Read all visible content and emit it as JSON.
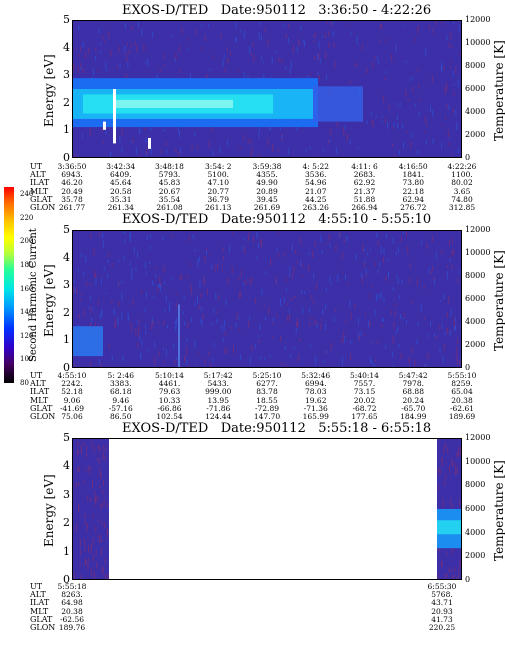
{
  "colorbar": {
    "label": "Second Harmonic Current",
    "ticks": [
      "240",
      "220",
      "200",
      "180",
      "160",
      "140",
      "120",
      "100",
      "80"
    ]
  },
  "panels": [
    {
      "title": "EXOS-D/TED",
      "date": "Date:950112",
      "range": "3:36:50 - 4:22:26",
      "ylabel": "Energy [eV]",
      "rlabel": "Temperature [K]",
      "yticks": [
        "5",
        "4",
        "3",
        "2",
        "1",
        "0"
      ],
      "rticks": [
        "12000",
        "10000",
        "8000",
        "6000",
        "4000",
        "2000",
        "0"
      ],
      "rows": [
        {
          "label": "UT",
          "values": [
            "3:36:50",
            "3:42:34",
            "3:48:18",
            "3:54: 2",
            "3:59:38",
            "4: 5:22",
            "4:11: 6",
            "4:16:50",
            "4:22:26"
          ]
        },
        {
          "label": "ALT",
          "values": [
            "6943.",
            "6409.",
            "5793.",
            "5100.",
            "4355.",
            "3536.",
            "2683.",
            "1841.",
            "1100."
          ]
        },
        {
          "label": "ILAT",
          "values": [
            "46.20",
            "45.64",
            "45.83",
            "47.10",
            "49.90",
            "54.96",
            "62.92",
            "73.80",
            "80.02"
          ]
        },
        {
          "label": "MLT",
          "values": [
            "20.49",
            "20.58",
            "20.67",
            "20.77",
            "20.89",
            "21.07",
            "21.37",
            "22.18",
            "3.65"
          ]
        },
        {
          "label": "GLAT",
          "values": [
            "35.78",
            "35.31",
            "35.54",
            "36.79",
            "39.45",
            "44.25",
            "51.88",
            "62.94",
            "74.80"
          ]
        },
        {
          "label": "GLON",
          "values": [
            "261.77",
            "261.34",
            "261.08",
            "261.13",
            "261.69",
            "263.26",
            "266.94",
            "276.72",
            "312.85"
          ]
        }
      ]
    },
    {
      "title": "EXOS-D/TED",
      "date": "Date:950112",
      "range": "4:55:10 - 5:55:10",
      "ylabel": "Energy [eV]",
      "rlabel": "Temperature [K]",
      "yticks": [
        "5",
        "4",
        "3",
        "2",
        "1",
        "0"
      ],
      "rticks": [
        "12000",
        "10000",
        "8000",
        "6000",
        "4000",
        "2000",
        "0"
      ],
      "rows": [
        {
          "label": "UT",
          "values": [
            "4:55:10",
            "5: 2:46",
            "5:10:14",
            "5:17:42",
            "5:25:10",
            "5:32:46",
            "5:40:14",
            "5:47:42",
            "5:55:10"
          ]
        },
        {
          "label": "ALT",
          "values": [
            "2242.",
            "3383.",
            "4461.",
            "5433.",
            "6277.",
            "6994.",
            "7557.",
            "7978.",
            "8259."
          ]
        },
        {
          "label": "ILAT",
          "values": [
            "52.18",
            "68.18",
            "79.63",
            "999.00",
            "83.78",
            "78.03",
            "73.15",
            "68.88",
            "65.04"
          ]
        },
        {
          "label": "MLT",
          "values": [
            "9.06",
            "9.46",
            "10.33",
            "13.95",
            "18.55",
            "19.62",
            "20.02",
            "20.24",
            "20.38"
          ]
        },
        {
          "label": "GLAT",
          "values": [
            "-41.69",
            "-57.16",
            "-66.86",
            "-71.86",
            "-72.89",
            "-71.36",
            "-68.72",
            "-65.70",
            "-62.61"
          ]
        },
        {
          "label": "GLON",
          "values": [
            "75.06",
            "86.50",
            "102.54",
            "124.44",
            "147.70",
            "165.99",
            "177.65",
            "184.99",
            "189.69"
          ]
        }
      ]
    },
    {
      "title": "EXOS-D/TED",
      "date": "Date:950112",
      "range": "5:55:18 - 6:55:18",
      "ylabel": "Energy [eV]",
      "rlabel": "Temperature [K]",
      "yticks": [
        "5",
        "4",
        "3",
        "2",
        "1",
        "0"
      ],
      "rticks": [
        "12000",
        "10000",
        "8000",
        "6000",
        "4000",
        "2000",
        "0"
      ],
      "rows": [
        {
          "label": "UT",
          "values": [
            "5:55:18",
            "6:55:30"
          ]
        },
        {
          "label": "ALT",
          "values": [
            "8263.",
            "5768."
          ]
        },
        {
          "label": "ILAT",
          "values": [
            "64.98",
            "43.71"
          ]
        },
        {
          "label": "MLT",
          "values": [
            "20.38",
            "20.93"
          ]
        },
        {
          "label": "GLAT",
          "values": [
            "-62.56",
            "41.73"
          ]
        },
        {
          "label": "GLON",
          "values": [
            "189.76",
            "220.25"
          ]
        }
      ]
    }
  ],
  "chart_data": [
    {
      "type": "heatmap",
      "title": "EXOS-D/TED   Date:950112   3:36:50 - 4:22:26",
      "xlabel": "",
      "ylabel": "Energy [eV]",
      "ylim": [
        0,
        5
      ],
      "y2label": "Temperature [K]",
      "y2lim": [
        0,
        12000
      ],
      "x": [
        "3:36:50",
        "3:42:34",
        "3:48:18",
        "3:54: 2",
        "3:59:38",
        "4: 5:22",
        "4:11: 6",
        "4:16:50",
        "4:22:26"
      ]
    },
    {
      "type": "heatmap",
      "title": "EXOS-D/TED   Date:950112   4:55:10 - 5:55:10",
      "xlabel": "",
      "ylabel": "Energy [eV]",
      "ylim": [
        0,
        5
      ],
      "y2label": "Temperature [K]",
      "y2lim": [
        0,
        12000
      ],
      "x": [
        "4:55:10",
        "5: 2:46",
        "5:10:14",
        "5:17:42",
        "5:25:10",
        "5:32:46",
        "5:40:14",
        "5:47:42",
        "5:55:10"
      ]
    },
    {
      "type": "heatmap",
      "title": "EXOS-D/TED   Date:950112   5:55:18 - 6:55:18",
      "xlabel": "",
      "ylabel": "Energy [eV]",
      "ylim": [
        0,
        5
      ],
      "y2label": "Temperature [K]",
      "y2lim": [
        0,
        12000
      ],
      "x": [
        "5:55:18",
        "6:55:30"
      ]
    }
  ]
}
